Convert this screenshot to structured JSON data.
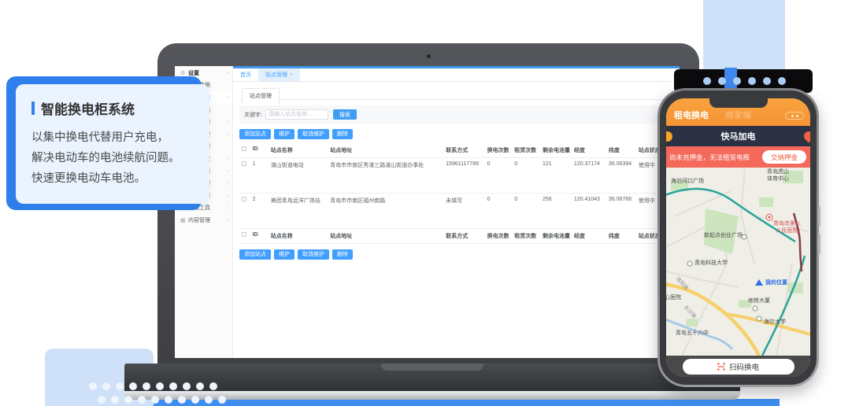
{
  "hero_card": {
    "title": "智能换电柜系统",
    "lines": [
      "以集中换电代替用户充电，",
      "解决电动车的电池续航问题。",
      "快速更换电动车电池。"
    ]
  },
  "admin": {
    "sidebar": {
      "items": [
        {
          "icon": "⚙",
          "label": "设置"
        },
        {
          "icon": "▤",
          "label": "换电数据"
        },
        {
          "icon": "▢",
          "label": "站点管理"
        },
        {
          "icon": "✉",
          "label": "短信通知"
        },
        {
          "icon": "◔",
          "label": "用户管理"
        },
        {
          "icon": "▣",
          "label": "电柜管理"
        },
        {
          "icon": "≡",
          "label": "订单管理"
        },
        {
          "icon": "◇",
          "label": "运营区域"
        },
        {
          "icon": "▭",
          "label": "卡券管理"
        },
        {
          "icon": "◎",
          "label": "售后管理"
        },
        {
          "icon": "¥",
          "label": "财务管理"
        },
        {
          "icon": "☁",
          "label": "扩展工具"
        },
        {
          "icon": "▦",
          "label": "内容管理"
        }
      ]
    },
    "tabs": {
      "home": "首页",
      "active": "站点管理",
      "close": "×"
    },
    "panel_tab": "站点管理",
    "filter": {
      "label": "关键字:",
      "placeholder": "请输入站点名称...",
      "search": "搜索"
    },
    "toolbar": {
      "add": "添加站点",
      "maintain": "维护",
      "unmaintain": "取消维护",
      "delete": "删除"
    },
    "table": {
      "headers": {
        "id": "ID",
        "name": "站点名称",
        "addr": "站点地址",
        "contact": "联系方式",
        "swap": "换电次数",
        "rent": "租赁次数",
        "battery": "剩余电池量",
        "lng": "经度",
        "lat": "纬度",
        "status": "站点状态"
      },
      "rows": [
        {
          "id": "1",
          "name": "湛山街道电站",
          "addr": "青岛市市南区秀湛三路湛山街道办事处",
          "contact": "15961117789",
          "swap": "0",
          "rent": "0",
          "battery": "121",
          "lng": "120.37174",
          "lat": "36.06394",
          "status": "使用中"
        },
        {
          "id": "2",
          "name": "美团青岛远洋广场站",
          "addr": "青岛市市南区福州南路",
          "contact": "未填写",
          "swap": "0",
          "rent": "0",
          "battery": "256",
          "lng": "120.41043",
          "lat": "36.06766",
          "status": "使用中"
        }
      ]
    }
  },
  "phone": {
    "titlebar": {
      "left": "租电换电",
      "center": "商家端"
    },
    "nav_title": "快马加电",
    "banner": {
      "text": "尚未充押金，无法租赁电瓶",
      "button": "交纳押金"
    },
    "bottom_button": "扫码换电",
    "map": {
      "labels": [
        {
          "text": "海泊河口广场"
        },
        {
          "text": "青岛虎山\n体育中心"
        },
        {
          "text": "新起点创业广场"
        },
        {
          "text": "青岛市第八\n人民医院"
        },
        {
          "text": "青岛科技大学"
        },
        {
          "text": "我的位置"
        },
        {
          "text": "洛阳路"
        },
        {
          "text": "心医院"
        },
        {
          "text": "长沙路"
        },
        {
          "text": "地铁大厦"
        },
        {
          "text": "海尔大学"
        },
        {
          "text": "青岛五十六中"
        }
      ]
    }
  },
  "colors": {
    "accent_blue": "#409eff",
    "hero_blue": "#2f80ed",
    "phone_orange": "#f69434",
    "phone_navy": "#2c3143",
    "phone_salmon": "#f5695b",
    "decor_light_blue": "#cfe1f8",
    "status_in_use": "使用中"
  }
}
